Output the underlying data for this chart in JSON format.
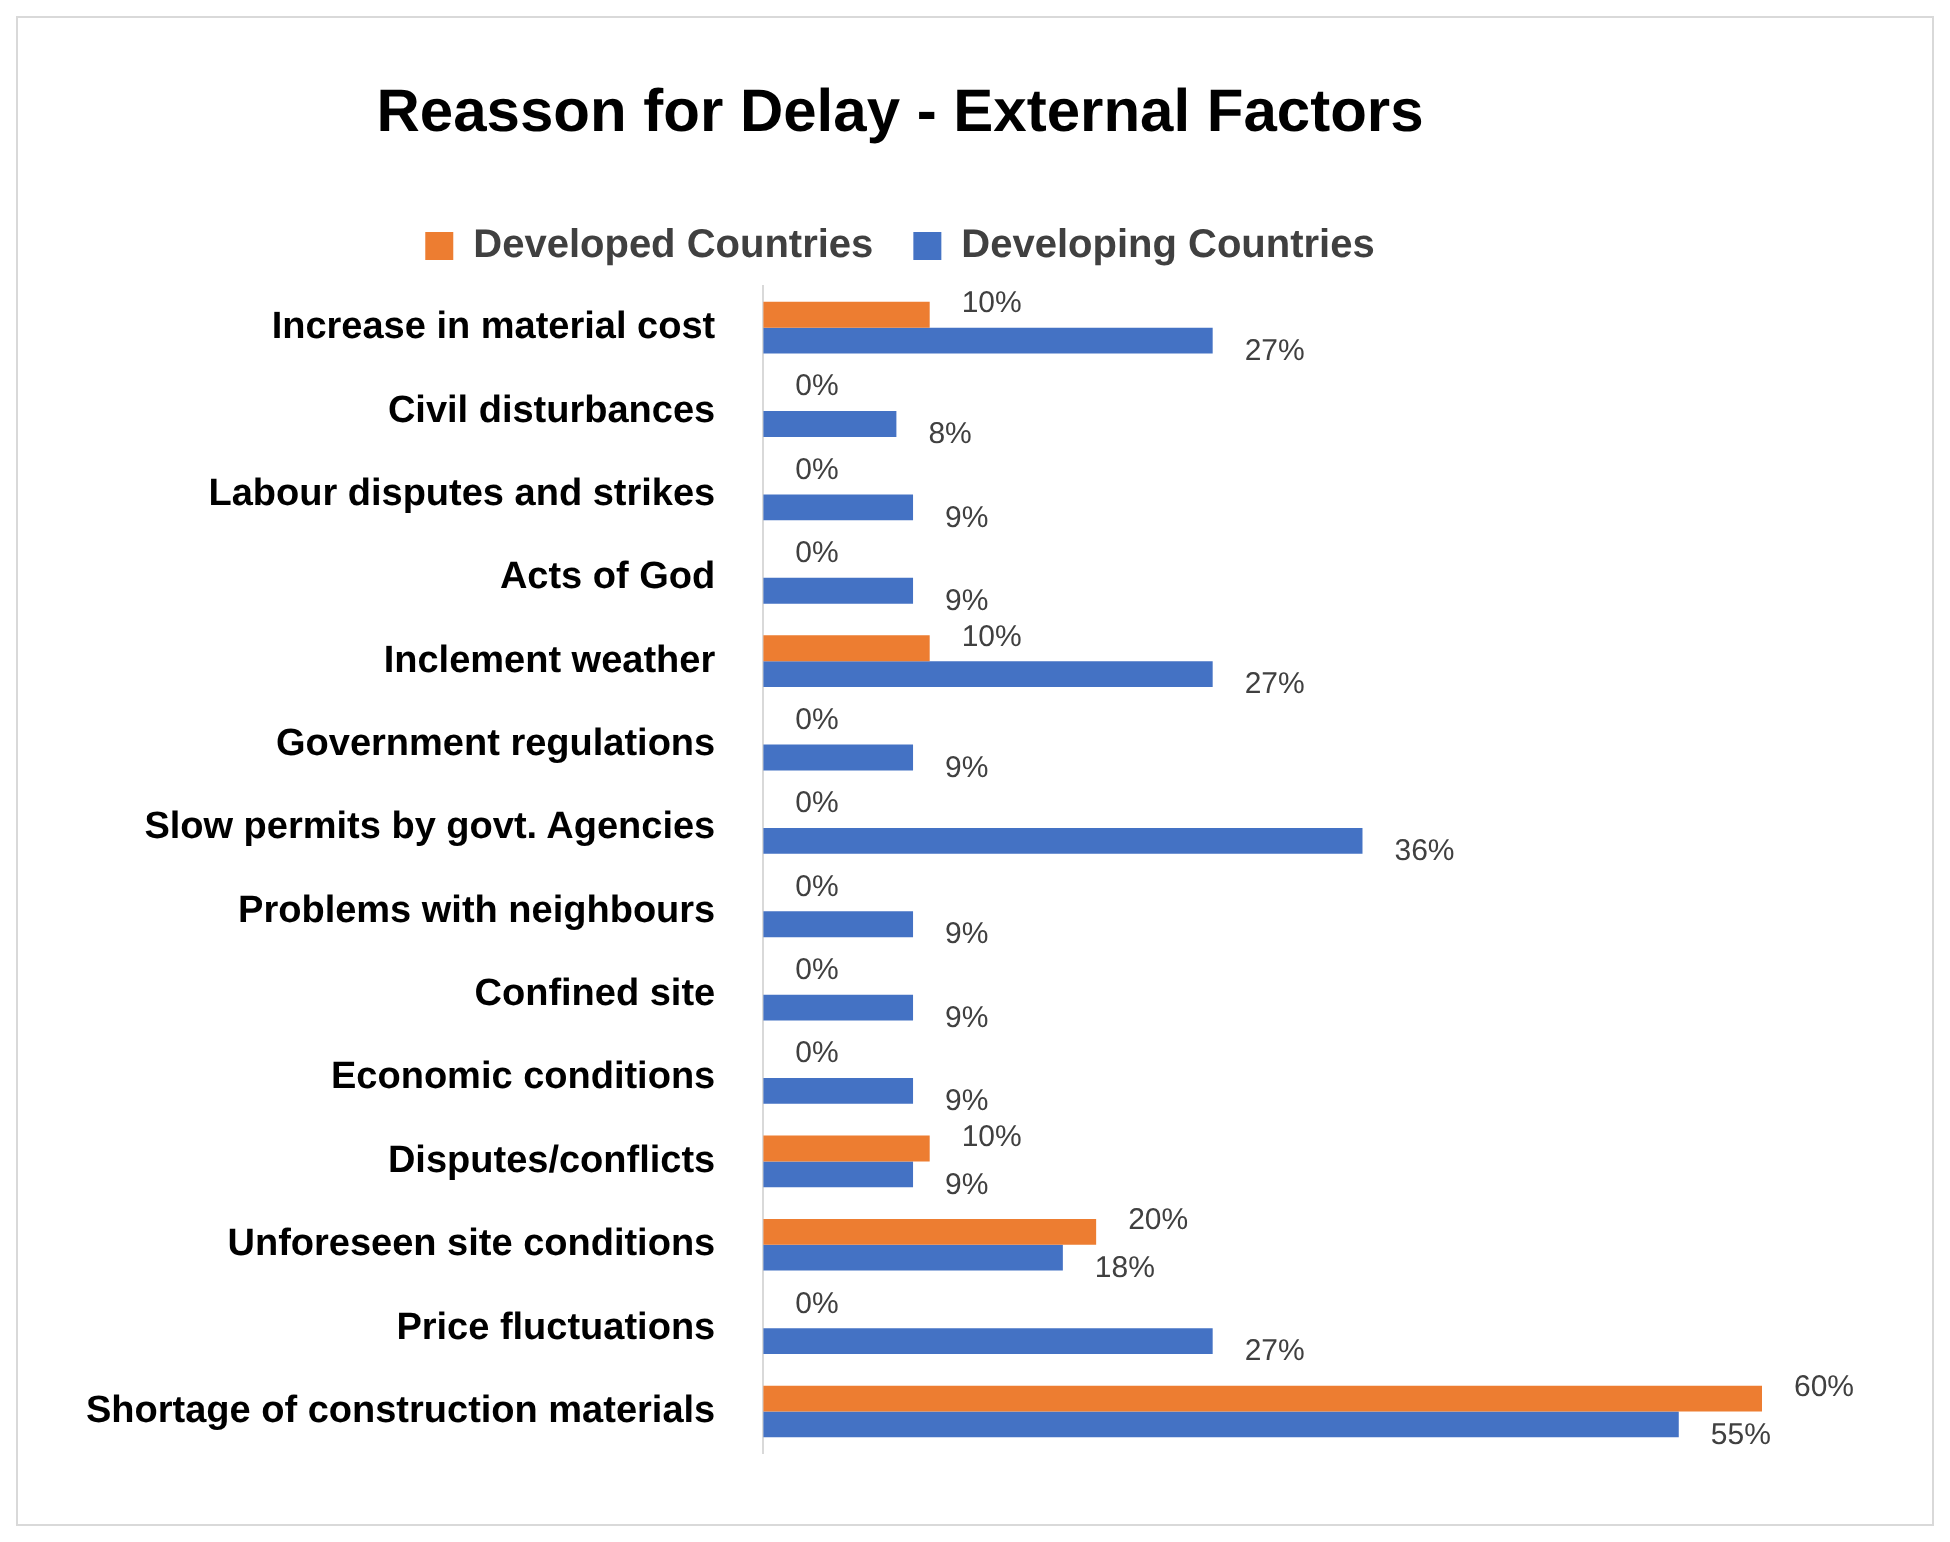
{
  "chart_data": {
    "type": "bar",
    "orientation": "horizontal",
    "title": "Reasson for Delay - External Factors",
    "categories": [
      "Increase in material cost",
      "Civil disturbances",
      "Labour disputes and strikes",
      "Acts of God",
      "Inclement weather",
      "Government regulations",
      "Slow permits by govt. Agencies",
      "Problems with neighbours",
      "Confined site",
      "Economic conditions",
      "Disputes/conflicts",
      "Unforeseen site conditions",
      "Price fluctuations",
      "Shortage of construction materials"
    ],
    "series": [
      {
        "name": "Developed Countries",
        "color": "#ed7d31",
        "values": [
          10,
          0,
          0,
          0,
          10,
          0,
          0,
          0,
          0,
          0,
          10,
          20,
          0,
          60
        ],
        "value_labels": [
          "10%",
          "0%",
          "0%",
          "0%",
          "10%",
          "0%",
          "0%",
          "0%",
          "0%",
          "0%",
          "10%",
          "20%",
          "0%",
          "60%"
        ]
      },
      {
        "name": "Developing Countries",
        "color": "#4472c4",
        "values": [
          27,
          8,
          9,
          9,
          27,
          9,
          36,
          9,
          9,
          9,
          9,
          18,
          27,
          55
        ],
        "value_labels": [
          "27%",
          "8%",
          "9%",
          "9%",
          "27%",
          "9%",
          "36%",
          "9%",
          "9%",
          "9%",
          "9%",
          "18%",
          "27%",
          "55%"
        ]
      }
    ],
    "legend": "top"
  }
}
